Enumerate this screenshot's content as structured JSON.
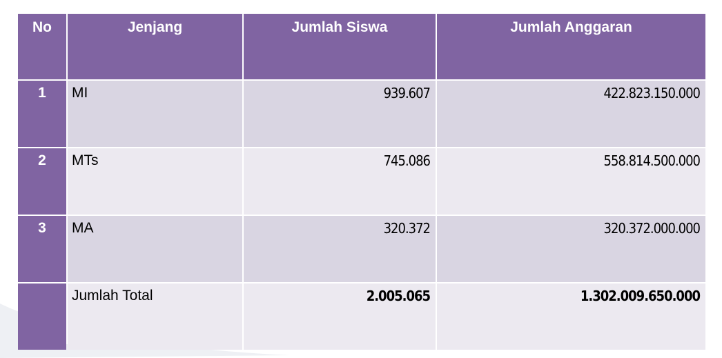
{
  "table": {
    "headers": [
      "No",
      "Jenjang",
      "Jumlah Siswa",
      "Jumlah Anggaran"
    ],
    "rows": [
      {
        "no": "1",
        "jenjang": "MI",
        "siswa": "939.607",
        "anggaran": "422.823.150.000"
      },
      {
        "no": "2",
        "jenjang": "MTs",
        "siswa": "745.086",
        "anggaran": "558.814.500.000"
      },
      {
        "no": "3",
        "jenjang": "MA",
        "siswa": "320.372",
        "anggaran": "320.372.000.000"
      }
    ],
    "total": {
      "no": "",
      "label": "Jumlah Total",
      "siswa": "2.005.065",
      "anggaran": "1.302.009.650.000"
    }
  },
  "colors": {
    "header": "#8064a2",
    "row_odd": "#d9d5e2",
    "row_even": "#ece9f0"
  }
}
